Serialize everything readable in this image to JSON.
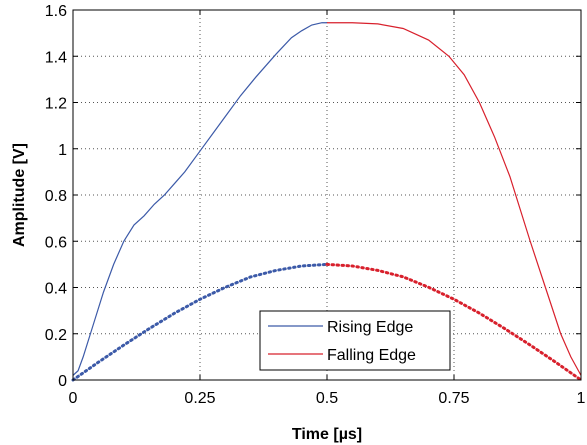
{
  "chart_data": {
    "type": "line",
    "title": "",
    "xlabel": "Time [µs]",
    "ylabel": "Amplitude [V]",
    "xlim": [
      0,
      1
    ],
    "ylim": [
      0,
      1.6
    ],
    "grid": true,
    "legend_position": "bottom-center",
    "x_ticks": [
      0,
      0.25,
      0.5,
      0.75,
      1
    ],
    "x_tick_labels": [
      "0",
      "0.25",
      "0.5",
      "0.75",
      "1"
    ],
    "y_ticks": [
      0,
      0.2,
      0.4,
      0.6,
      0.8,
      1,
      1.2,
      1.4,
      1.6
    ],
    "y_tick_labels": [
      "0",
      "0.2",
      "0.4",
      "0.6",
      "0.8",
      "1",
      "1.2",
      "1.4",
      "1.6"
    ],
    "series": [
      {
        "name": "Rising Edge",
        "color": "#3c5aa8",
        "style": "solid",
        "x": [
          0,
          0.01,
          0.02,
          0.04,
          0.06,
          0.08,
          0.1,
          0.12,
          0.14,
          0.16,
          0.18,
          0.2,
          0.22,
          0.25,
          0.28,
          0.3,
          0.33,
          0.36,
          0.4,
          0.43,
          0.45,
          0.47,
          0.49,
          0.5
        ],
        "y": [
          0.02,
          0.04,
          0.1,
          0.24,
          0.38,
          0.5,
          0.6,
          0.67,
          0.71,
          0.76,
          0.8,
          0.85,
          0.9,
          0.99,
          1.08,
          1.14,
          1.23,
          1.31,
          1.41,
          1.48,
          1.51,
          1.535,
          1.545,
          1.545
        ]
      },
      {
        "name": "Falling Edge",
        "color": "#d8202c",
        "style": "solid",
        "x": [
          0.5,
          0.55,
          0.6,
          0.65,
          0.7,
          0.74,
          0.77,
          0.8,
          0.83,
          0.86,
          0.9,
          0.93,
          0.96,
          0.98,
          1.0
        ],
        "y": [
          1.545,
          1.545,
          1.54,
          1.52,
          1.47,
          1.4,
          1.32,
          1.2,
          1.05,
          0.88,
          0.6,
          0.4,
          0.2,
          0.1,
          0.02
        ]
      },
      {
        "name": "",
        "color": "#3c5aa8",
        "style": "dotted",
        "x": [
          0,
          0.05,
          0.1,
          0.15,
          0.2,
          0.25,
          0.3,
          0.35,
          0.4,
          0.45,
          0.5
        ],
        "y": [
          0,
          0.077,
          0.151,
          0.222,
          0.289,
          0.349,
          0.401,
          0.446,
          0.474,
          0.493,
          0.5
        ]
      },
      {
        "name": "",
        "color": "#d8202c",
        "style": "dotted",
        "x": [
          0.5,
          0.55,
          0.6,
          0.65,
          0.7,
          0.75,
          0.8,
          0.85,
          0.9,
          0.95,
          1.0
        ],
        "y": [
          0.5,
          0.493,
          0.474,
          0.446,
          0.401,
          0.349,
          0.289,
          0.222,
          0.151,
          0.077,
          0
        ]
      }
    ],
    "legend": [
      {
        "label": "Rising Edge",
        "color": "#3c5aa8"
      },
      {
        "label": "Falling Edge",
        "color": "#d8202c"
      }
    ]
  }
}
